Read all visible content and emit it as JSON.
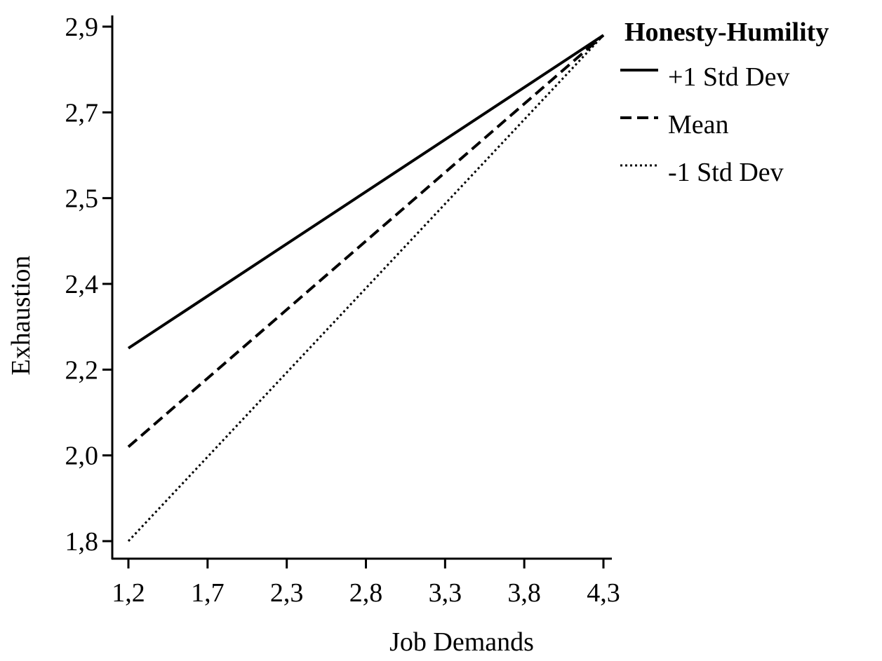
{
  "chart_data": {
    "type": "line",
    "title": "",
    "xlabel": "Job Demands",
    "ylabel": "Exhaustion",
    "x_ticks": [
      "1,2",
      "1,7",
      "2,3",
      "2,8",
      "3,3",
      "3,8",
      "4,3"
    ],
    "y_ticks": [
      "1,8",
      "2,0",
      "2,2",
      "2,4",
      "2,5",
      "2,7",
      "2,9"
    ],
    "xlim": [
      1.2,
      4.3
    ],
    "ylim": [
      1.8,
      2.9
    ],
    "grid": false,
    "legend": {
      "title": "Honesty-Humility",
      "placement": "top-right"
    },
    "series": [
      {
        "name": "+1 Std Dev",
        "style": "solid",
        "color": "#000000",
        "x": [
          1.2,
          4.3
        ],
        "y": [
          2.25,
          2.88
        ]
      },
      {
        "name": "Mean",
        "style": "dashed",
        "color": "#000000",
        "x": [
          1.2,
          4.3
        ],
        "y": [
          2.02,
          2.88
        ]
      },
      {
        "name": "-1 Std Dev",
        "style": "dotted",
        "color": "#000000",
        "x": [
          1.2,
          4.3
        ],
        "y": [
          1.8,
          2.88
        ]
      }
    ]
  }
}
